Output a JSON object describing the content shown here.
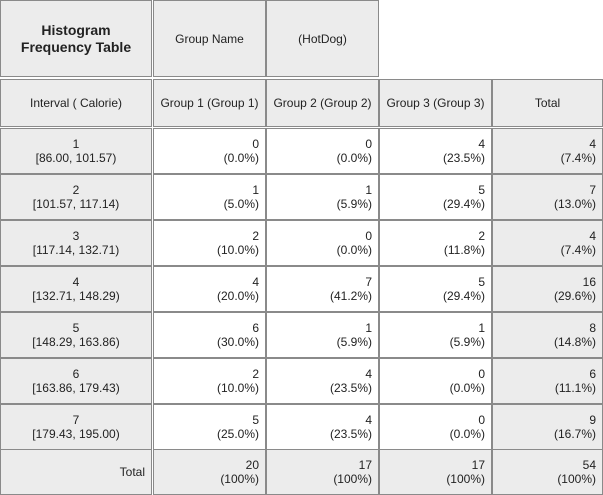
{
  "table": {
    "title_line1": "Histogram",
    "title_line2": "Frequency Table",
    "group_name_label": "Group Name",
    "group_name_value": "(HotDog)",
    "interval_header": "Interval ( Calorie)",
    "col_headers": [
      "Group 1 (Group 1)",
      "Group 2 (Group 2)",
      "Group 3 (Group 3)",
      "Total"
    ],
    "rows": [
      {
        "index": "1",
        "range": "[86.00, 101.57)",
        "cells": [
          [
            "0",
            "(0.0%)"
          ],
          [
            "0",
            "(0.0%)"
          ],
          [
            "4",
            "(23.5%)"
          ],
          [
            "4",
            "(7.4%)"
          ]
        ]
      },
      {
        "index": "2",
        "range": "[101.57, 117.14)",
        "cells": [
          [
            "1",
            "(5.0%)"
          ],
          [
            "1",
            "(5.9%)"
          ],
          [
            "5",
            "(29.4%)"
          ],
          [
            "7",
            "(13.0%)"
          ]
        ]
      },
      {
        "index": "3",
        "range": "[117.14, 132.71)",
        "cells": [
          [
            "2",
            "(10.0%)"
          ],
          [
            "0",
            "(0.0%)"
          ],
          [
            "2",
            "(11.8%)"
          ],
          [
            "4",
            "(7.4%)"
          ]
        ]
      },
      {
        "index": "4",
        "range": "[132.71, 148.29)",
        "cells": [
          [
            "4",
            "(20.0%)"
          ],
          [
            "7",
            "(41.2%)"
          ],
          [
            "5",
            "(29.4%)"
          ],
          [
            "16",
            "(29.6%)"
          ]
        ]
      },
      {
        "index": "5",
        "range": "[148.29, 163.86)",
        "cells": [
          [
            "6",
            "(30.0%)"
          ],
          [
            "1",
            "(5.9%)"
          ],
          [
            "1",
            "(5.9%)"
          ],
          [
            "8",
            "(14.8%)"
          ]
        ]
      },
      {
        "index": "6",
        "range": "[163.86, 179.43)",
        "cells": [
          [
            "2",
            "(10.0%)"
          ],
          [
            "4",
            "(23.5%)"
          ],
          [
            "0",
            "(0.0%)"
          ],
          [
            "6",
            "(11.1%)"
          ]
        ]
      },
      {
        "index": "7",
        "range": "[179.43, 195.00)",
        "cells": [
          [
            "5",
            "(25.0%)"
          ],
          [
            "4",
            "(23.5%)"
          ],
          [
            "0",
            "(0.0%)"
          ],
          [
            "9",
            "(16.7%)"
          ]
        ]
      }
    ],
    "total_label": "Total",
    "totals": [
      [
        "20",
        "(100%)"
      ],
      [
        "17",
        "(100%)"
      ],
      [
        "17",
        "(100%)"
      ],
      [
        "54",
        "(100%)"
      ]
    ]
  }
}
